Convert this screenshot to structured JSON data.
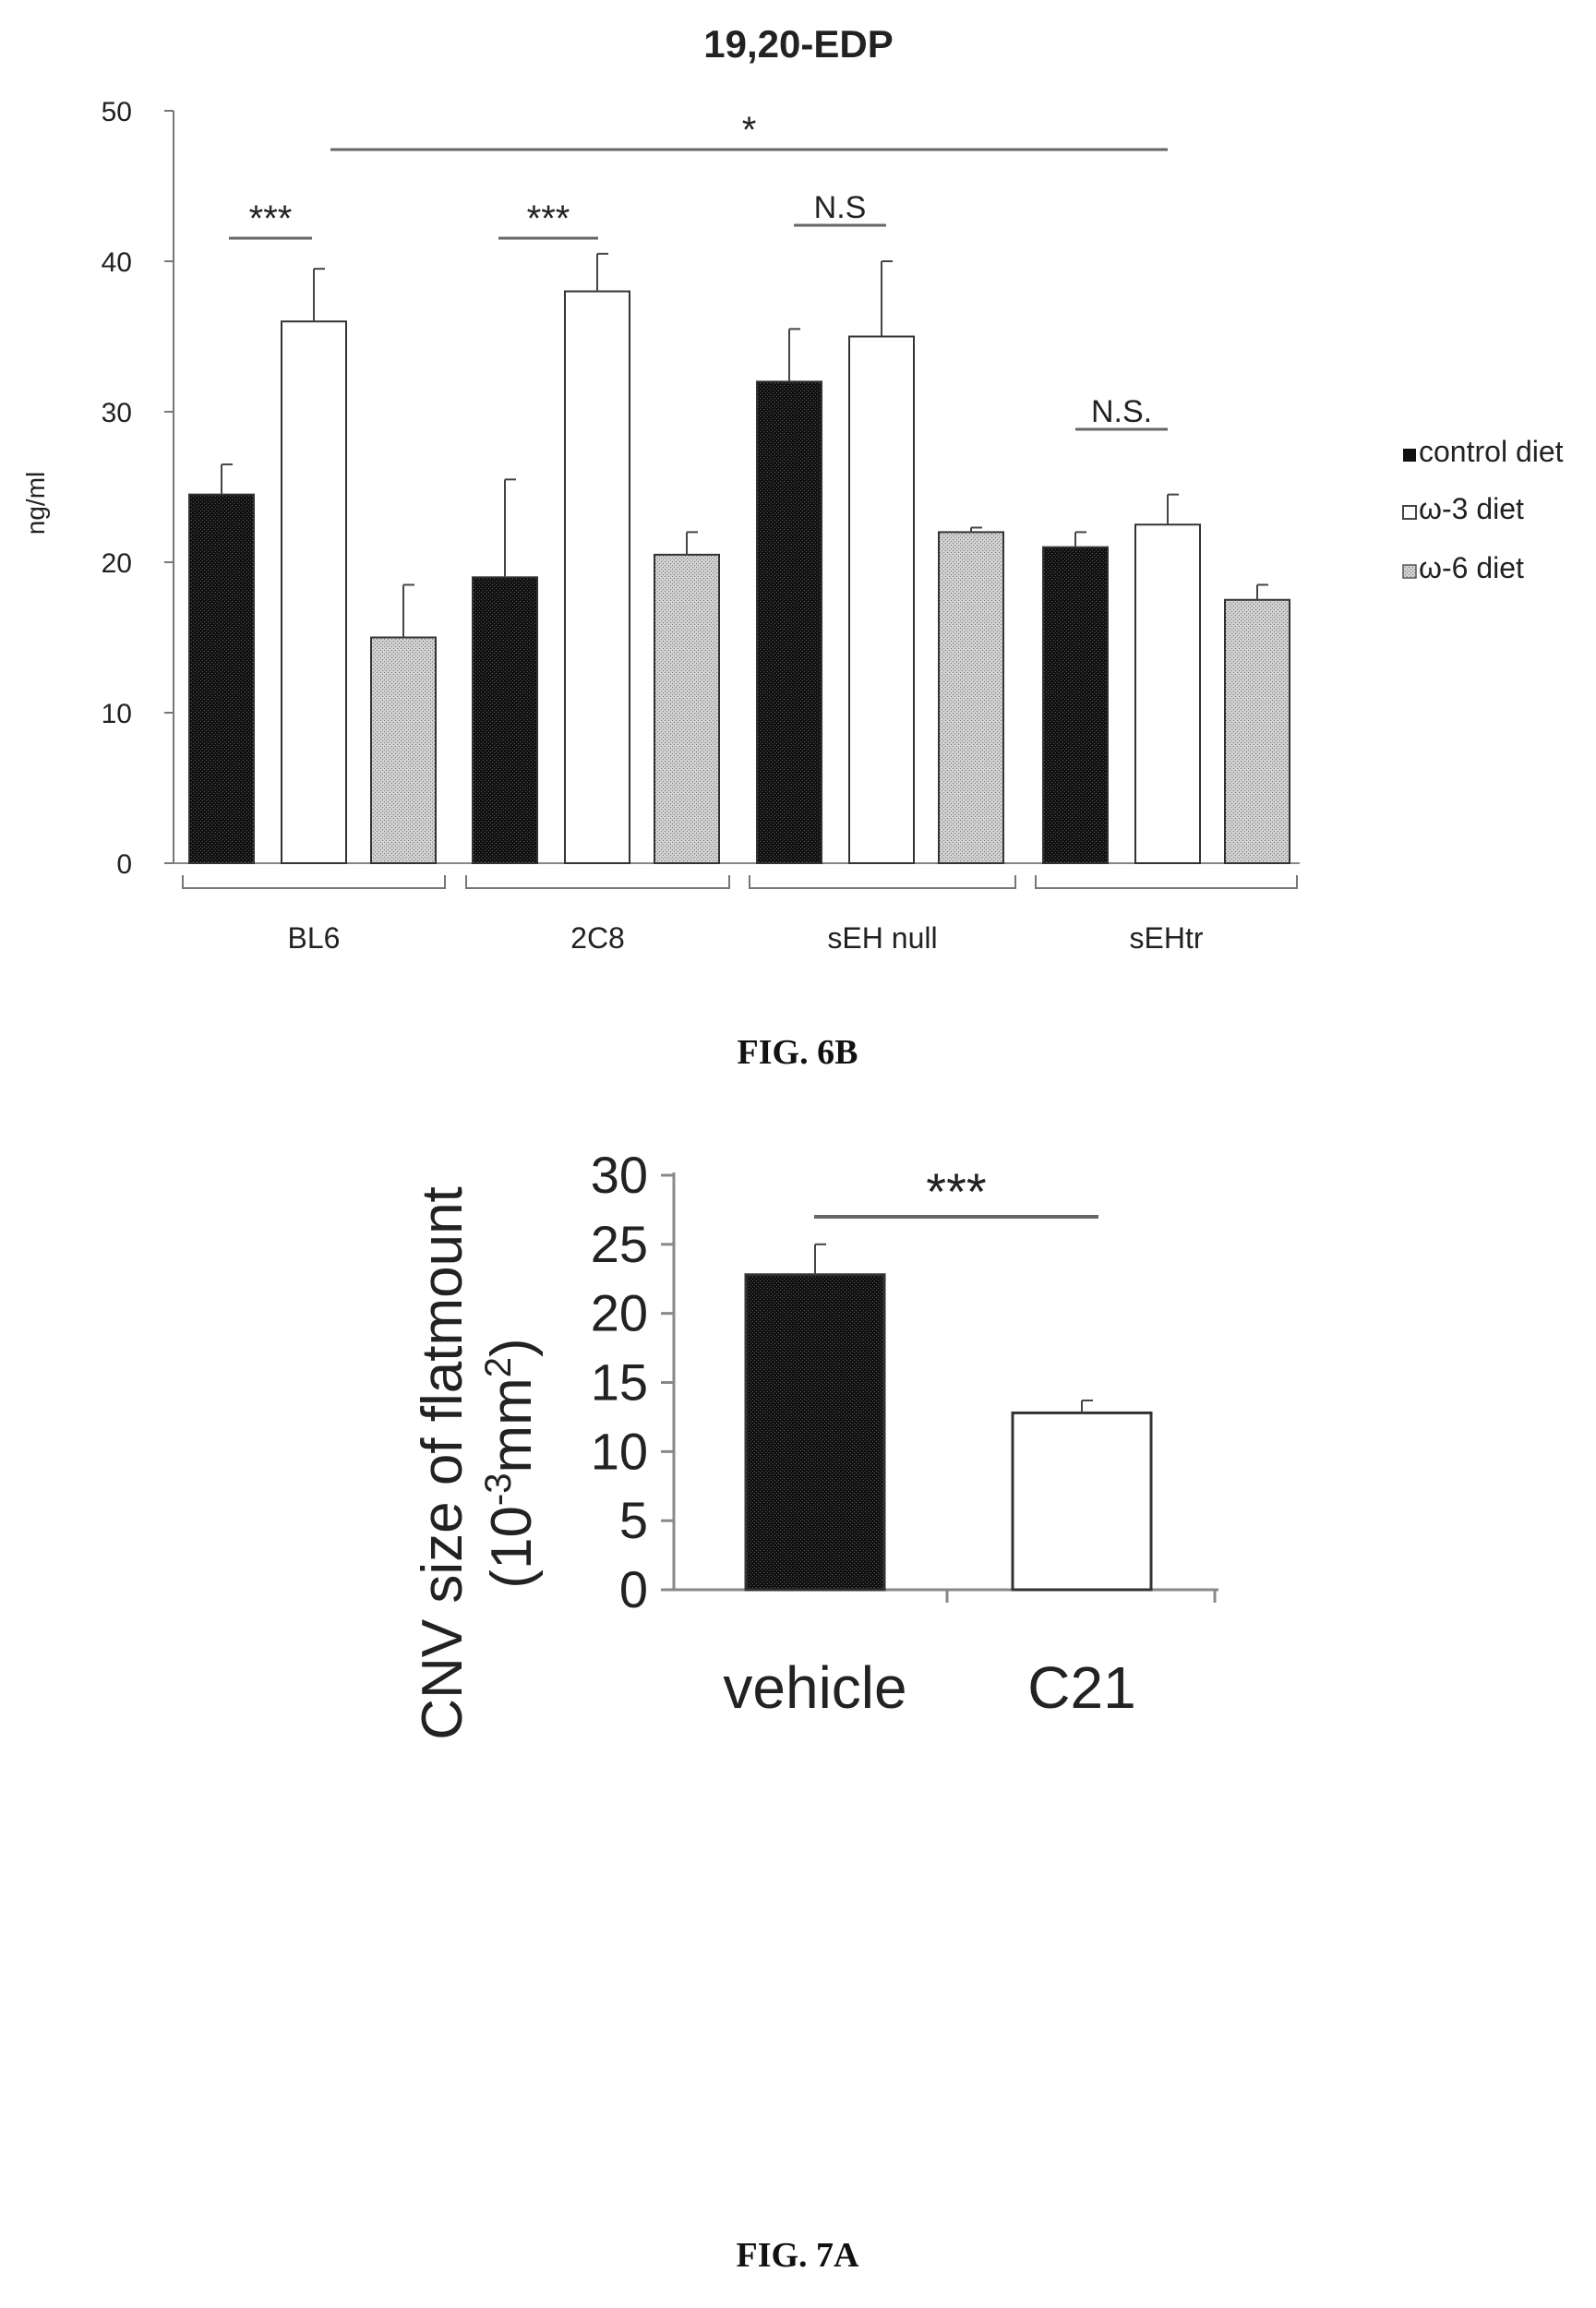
{
  "chart_data": [
    {
      "type": "bar",
      "title": "19,20-EDP",
      "ylabel": "ng/ml",
      "xlabel": "",
      "ylim": [
        0,
        50
      ],
      "yticks": [
        "0",
        "10",
        "20",
        "30",
        "40",
        "50"
      ],
      "categories": [
        "BL6",
        "2C8",
        "sEH null",
        "sEHtr"
      ],
      "series": [
        {
          "name": "control diet",
          "values": [
            24.5,
            19,
            32,
            21
          ],
          "errors": [
            2,
            6.5,
            3.5,
            1
          ],
          "color": "#111111"
        },
        {
          "name": "ω-3 diet",
          "values": [
            36,
            38,
            35,
            22.5
          ],
          "errors": [
            3.5,
            2.5,
            5,
            2
          ],
          "color": "#ffffff"
        },
        {
          "name": "ω-6 diet",
          "values": [
            15,
            20.5,
            22,
            17.5
          ],
          "errors": [
            3.5,
            1.5,
            0.3,
            1
          ],
          "color": "#c8c8c8"
        }
      ],
      "legend": [
        "control diet",
        "ω-3 diet",
        "ω-6 diet"
      ],
      "legend_position": "right",
      "annotations": {
        "sig_bl6": "***",
        "sig_2c8": "***",
        "sig_sehnull": "N.S",
        "sig_sehtr": "N.S.",
        "sig_overall": "*"
      },
      "caption": "FIG. 6B"
    },
    {
      "type": "bar",
      "title": "",
      "ylabel_line1": "CNV size of  flatmount",
      "ylabel_line2": "(10^-3mm^2)",
      "ylabel_parts": [
        "(10",
        "-3",
        "mm",
        "2",
        ")"
      ],
      "ylim": [
        0,
        30
      ],
      "yticks": [
        "0",
        "5",
        "10",
        "15",
        "20",
        "25",
        "30"
      ],
      "categories": [
        "vehicle",
        "C21"
      ],
      "values": [
        22.8,
        12.8
      ],
      "errors": [
        2.2,
        0.9
      ],
      "colors": [
        "#111111",
        "#ffffff"
      ],
      "annotations": {
        "sig": "***"
      },
      "caption": "FIG. 7A"
    }
  ]
}
